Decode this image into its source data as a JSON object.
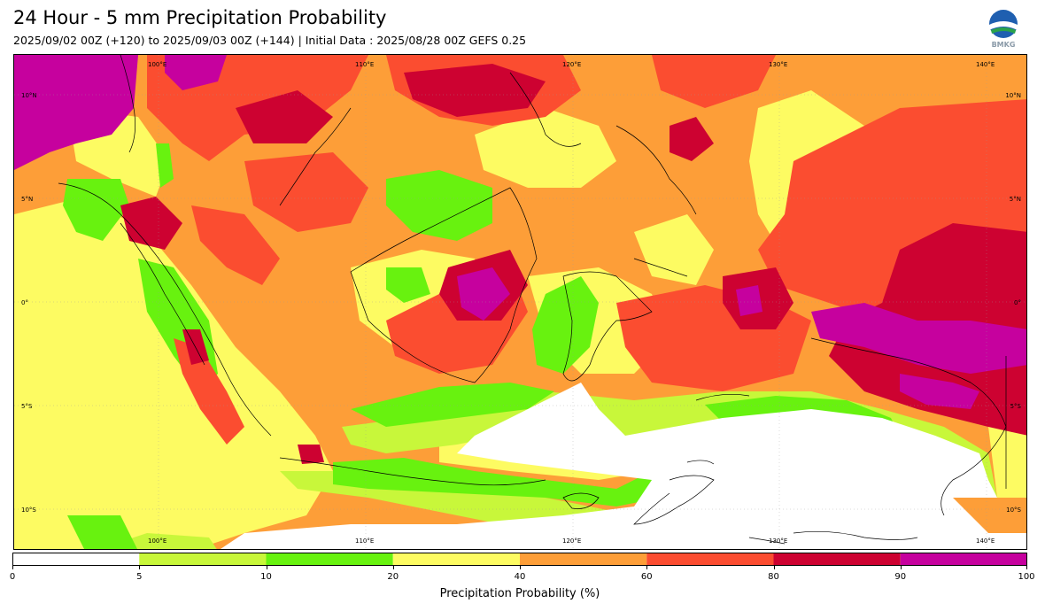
{
  "header": {
    "title": "24 Hour - 5 mm Precipitation Probability",
    "subtitle": "2025/09/02 00Z (+120) to 2025/09/03 00Z (+144) | Initial Data : 2025/08/28 00Z GEFS 0.25",
    "logo_text": "BMKG"
  },
  "map": {
    "lon_labels": [
      "100°E",
      "110°E",
      "120°E",
      "130°E",
      "140°E"
    ],
    "lat_labels": [
      "10°N",
      "5°N",
      "0°",
      "5°S",
      "10°S"
    ]
  },
  "colorbar": {
    "title": "Precipitation Probability (%)",
    "ticks": [
      "0",
      "5",
      "10",
      "20",
      "40",
      "60",
      "80",
      "90",
      "100"
    ],
    "colors": [
      "#ffffff",
      "#c8f73a",
      "#68f20f",
      "#fdfb62",
      "#fd9e38",
      "#fb4d30",
      "#cd0231",
      "#c6019e"
    ]
  }
}
